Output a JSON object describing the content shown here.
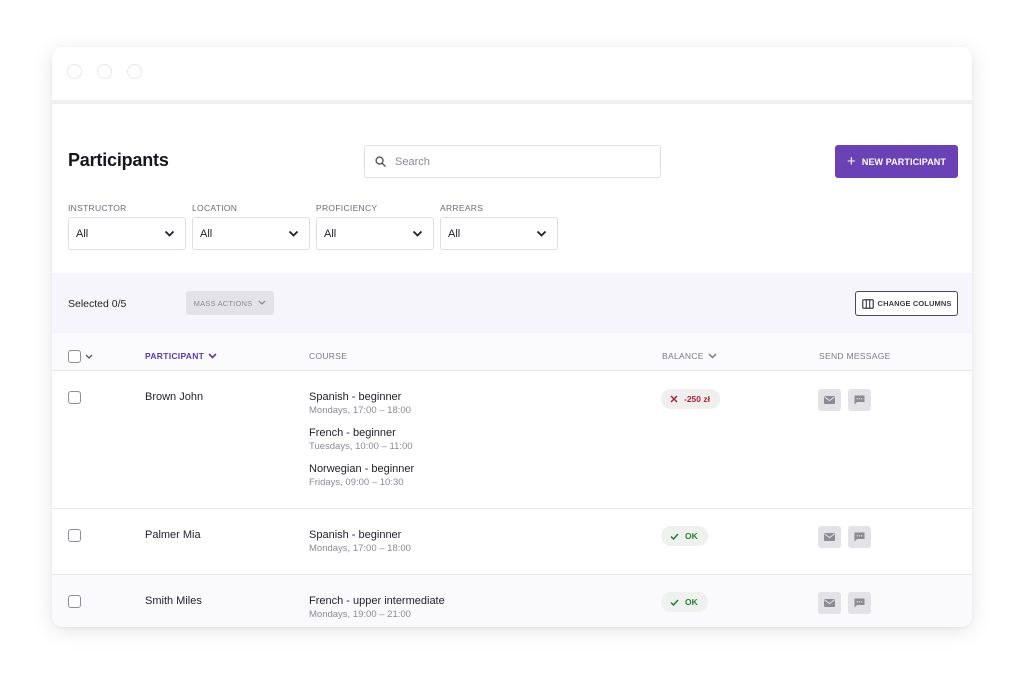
{
  "page": {
    "title": "Participants"
  },
  "search": {
    "placeholder": "Search"
  },
  "toolbar": {
    "new_participant_label": "NEW PARTICIPANT"
  },
  "filters": [
    {
      "label": "INSTRUCTOR",
      "value": "All"
    },
    {
      "label": "LOCATION",
      "value": "All"
    },
    {
      "label": "PROFICIENCY",
      "value": "All"
    },
    {
      "label": "ARREARS",
      "value": "All"
    }
  ],
  "mass_bar": {
    "selected_text": "Selected 0/5",
    "mass_actions_label": "MASS ACTIONS",
    "change_columns_label": "CHANGE COLUMNS"
  },
  "table": {
    "headers": {
      "participant": "PARTICIPANT",
      "course": "COURSE",
      "balance": "BALANCE",
      "send_message": "SEND MESSAGE"
    },
    "rows": [
      {
        "name": "Brown John",
        "courses": [
          {
            "name": "Spanish - beginner",
            "time": "Mondays, 17:00 – 18:00"
          },
          {
            "name": "French - beginner",
            "time": "Tuesdays, 10:00 – 11:00"
          },
          {
            "name": "Norwegian - beginner",
            "time": "Fridays, 09:00 – 10:30"
          }
        ],
        "balance": {
          "text": "-250 zł",
          "status": "arrears"
        }
      },
      {
        "name": "Palmer Mia",
        "courses": [
          {
            "name": "Spanish - beginner",
            "time": "Mondays, 17:00 – 18:00"
          }
        ],
        "balance": {
          "text": "OK",
          "status": "ok"
        }
      },
      {
        "name": "Smith Miles",
        "courses": [
          {
            "name": "French - upper intermediate",
            "time": "Mondays, 19:00 – 21:00"
          }
        ],
        "balance": {
          "text": "OK",
          "status": "ok"
        }
      }
    ]
  },
  "icons": {
    "search": "search-icon",
    "plus": "plus-icon",
    "chevron": "chevron-down-icon",
    "columns": "columns-icon",
    "envelope": "envelope-icon",
    "chat": "chat-icon",
    "cross": "cross-icon",
    "check": "check-icon"
  },
  "colors": {
    "accent": "#6a42b6",
    "arrears_text": "#a72733",
    "ok_text": "#2f7a3a",
    "massbar_bg": "#f6f5fb"
  }
}
